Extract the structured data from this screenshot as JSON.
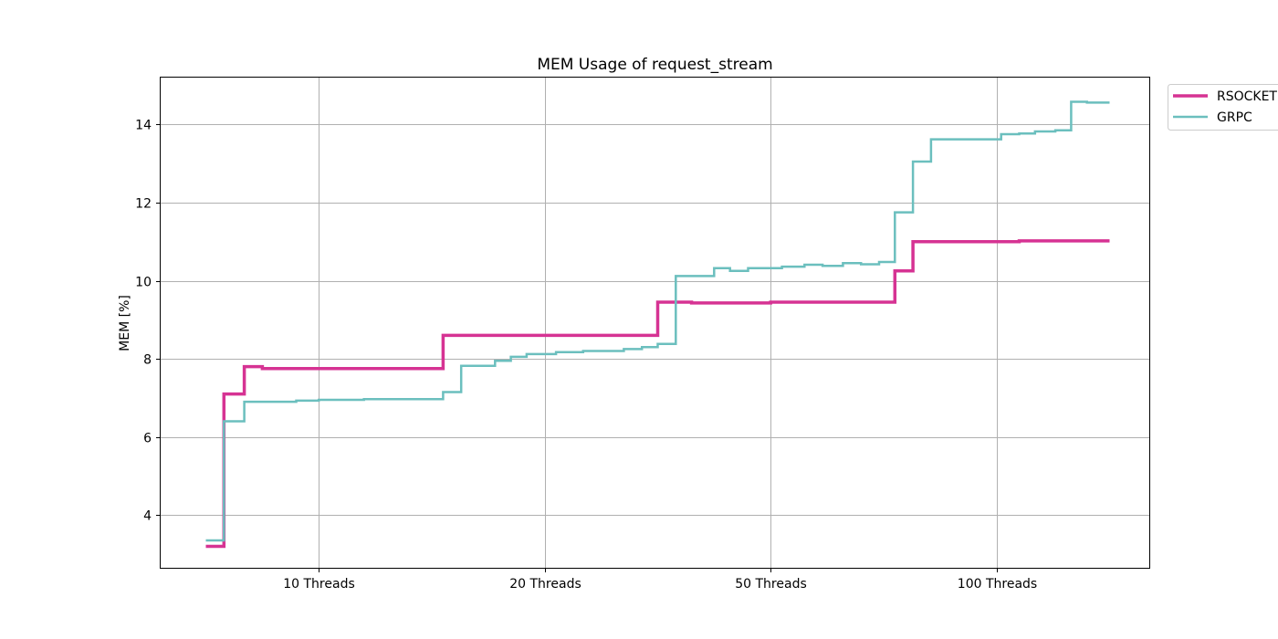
{
  "chart_data": {
    "type": "line",
    "step": true,
    "title": "MEM Usage of request_stream",
    "xlabel": "",
    "ylabel": "MEM [%]",
    "x_ticks": [
      {
        "x": 10,
        "label": "10 Threads"
      },
      {
        "x": 20,
        "label": "20 Threads"
      },
      {
        "x": 30,
        "label": "50 Threads"
      },
      {
        "x": 40,
        "label": "100 Threads"
      }
    ],
    "xlim": [
      3,
      46.8
    ],
    "ylim": [
      2.65,
      15.2
    ],
    "y_ticks": [
      4,
      6,
      8,
      10,
      12,
      14
    ],
    "grid": true,
    "legend_position": "outside-top-right",
    "series": [
      {
        "name": "RSOCKET",
        "color": "#d63393",
        "linewidth": 3.5,
        "points": [
          [
            5.0,
            3.2
          ],
          [
            5.8,
            7.1
          ],
          [
            6.7,
            7.8
          ],
          [
            7.5,
            7.75
          ],
          [
            15.5,
            8.6
          ],
          [
            25.0,
            9.45
          ],
          [
            25.5,
            9.45
          ],
          [
            26.5,
            9.43
          ],
          [
            30.0,
            9.45
          ],
          [
            35.5,
            10.25
          ],
          [
            36.3,
            11.0
          ],
          [
            41.0,
            11.02
          ],
          [
            45.0,
            11.02
          ]
        ]
      },
      {
        "name": "GRPC",
        "color": "#6bbfbe",
        "linewidth": 2.5,
        "points": [
          [
            5.0,
            3.35
          ],
          [
            5.8,
            6.4
          ],
          [
            6.7,
            6.9
          ],
          [
            9.0,
            6.93
          ],
          [
            10.0,
            6.95
          ],
          [
            12.0,
            6.97
          ],
          [
            15.5,
            7.15
          ],
          [
            16.3,
            7.82
          ],
          [
            17.8,
            7.95
          ],
          [
            18.5,
            8.05
          ],
          [
            19.2,
            8.12
          ],
          [
            20.5,
            8.17
          ],
          [
            21.7,
            8.2
          ],
          [
            23.5,
            8.25
          ],
          [
            24.3,
            8.3
          ],
          [
            25.0,
            8.38
          ],
          [
            25.8,
            10.12
          ],
          [
            27.5,
            10.32
          ],
          [
            28.2,
            10.25
          ],
          [
            29.0,
            10.32
          ],
          [
            30.5,
            10.36
          ],
          [
            31.5,
            10.41
          ],
          [
            32.3,
            10.38
          ],
          [
            33.2,
            10.45
          ],
          [
            34.0,
            10.42
          ],
          [
            34.8,
            10.48
          ],
          [
            35.5,
            11.75
          ],
          [
            36.3,
            13.05
          ],
          [
            37.1,
            13.62
          ],
          [
            40.2,
            13.75
          ],
          [
            41.0,
            13.77
          ],
          [
            41.7,
            13.82
          ],
          [
            42.6,
            13.85
          ],
          [
            43.3,
            14.58
          ],
          [
            44.0,
            14.56
          ],
          [
            45.0,
            14.56
          ]
        ]
      }
    ]
  }
}
